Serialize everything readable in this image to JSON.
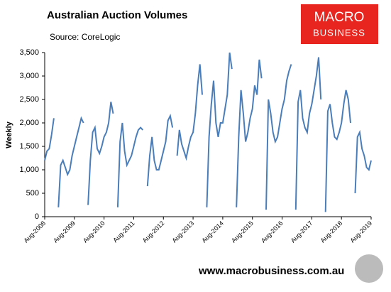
{
  "chart_data": {
    "type": "line",
    "title": "Australian Auction Volumes",
    "subtitle": "Source: CoreLogic",
    "y_label": "Weekly",
    "logo": {
      "line1": "MACRO",
      "line2": "BUSINESS"
    },
    "footer": "www.macrobusiness.com.au",
    "categories": [
      "Aug-2008",
      null,
      null,
      null,
      null,
      null,
      null,
      null,
      null,
      null,
      null,
      null,
      null,
      "Aug-2009",
      null,
      null,
      null,
      null,
      null,
      null,
      null,
      null,
      null,
      null,
      null,
      null,
      "Aug-2010",
      null,
      null,
      null,
      null,
      null,
      null,
      null,
      null,
      null,
      null,
      null,
      null,
      "Aug-2011",
      null,
      null,
      null,
      null,
      null,
      null,
      null,
      null,
      null,
      null,
      null,
      null,
      "Aug-2012",
      null,
      null,
      null,
      null,
      null,
      null,
      null,
      null,
      null,
      null,
      null,
      null,
      "Aug-2013",
      null,
      null,
      null,
      null,
      null,
      null,
      null,
      null,
      null,
      null,
      null,
      null,
      "Aug-2014",
      null,
      null,
      null,
      null,
      null,
      null,
      null,
      null,
      null,
      null,
      null,
      null,
      "Aug-2015",
      null,
      null,
      null,
      null,
      null,
      null,
      null,
      null,
      null,
      null,
      null,
      null,
      "Aug-2016",
      null,
      null,
      null,
      null,
      null,
      null,
      null,
      null,
      null,
      null,
      null,
      null,
      "Aug-2017",
      null,
      null,
      null,
      null,
      null,
      null,
      null,
      null,
      null,
      null,
      null,
      null,
      "Aug-2018",
      null,
      null,
      null,
      null,
      null,
      null,
      null,
      null,
      null,
      null,
      null,
      null,
      "Aug-2019"
    ],
    "series": [
      {
        "name": "Weekly",
        "color": "#4a7ebb",
        "values": [
          1200,
          1400,
          1450,
          1750,
          2100,
          null,
          200,
          1100,
          1200,
          1050,
          900,
          1000,
          1300,
          1500,
          1700,
          1900,
          2100,
          2000,
          null,
          250,
          1200,
          1800,
          1900,
          1450,
          1350,
          1500,
          1700,
          1800,
          2000,
          2450,
          2200,
          null,
          200,
          1600,
          2000,
          1400,
          1100,
          1200,
          1300,
          1500,
          1700,
          1850,
          1900,
          1850,
          null,
          650,
          1300,
          1700,
          1200,
          1000,
          1000,
          1200,
          1400,
          1600,
          2050,
          2150,
          1900,
          null,
          1300,
          1850,
          1550,
          1400,
          1250,
          1500,
          1700,
          1800,
          2200,
          2800,
          3250,
          2600,
          null,
          200,
          1700,
          2400,
          2900,
          2000,
          1700,
          2000,
          2000,
          2300,
          2600,
          3500,
          3150,
          null,
          200,
          1700,
          2700,
          2200,
          1600,
          1800,
          2100,
          2300,
          2800,
          2600,
          3350,
          2950,
          null,
          150,
          2500,
          2200,
          1800,
          1600,
          1700,
          2000,
          2300,
          2500,
          2900,
          3100,
          3250,
          null,
          150,
          2450,
          2700,
          2100,
          1900,
          1800,
          2200,
          2400,
          2700,
          3000,
          3400,
          2500,
          null,
          100,
          2250,
          2400,
          2000,
          1700,
          1650,
          1800,
          2000,
          2400,
          2700,
          2500,
          2000,
          null,
          500,
          1700,
          1800,
          1450,
          1300,
          1050,
          1000,
          1200
        ]
      }
    ],
    "ylim": [
      0,
      3500
    ],
    "yticks": [
      0,
      500,
      {
        "value": 1000,
        "label": "1,000"
      },
      {
        "value": 1500,
        "label": "1,500"
      },
      {
        "value": 2000,
        "label": "2,000"
      },
      {
        "value": 2500,
        "label": "2,500"
      },
      {
        "value": 3000,
        "label": "3,000"
      },
      {
        "value": 3500,
        "label": "3,500"
      }
    ],
    "grid": false
  }
}
